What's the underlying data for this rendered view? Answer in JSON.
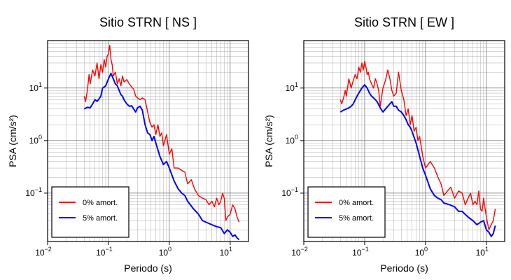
{
  "chart_data": [
    {
      "type": "line",
      "title": "Sitio STRN [ NS ]",
      "xlabel": "Periodo (s)",
      "ylabel": "PSA (cm/s²)",
      "xscale": "log",
      "yscale": "log",
      "xlim": [
        0.01,
        20
      ],
      "ylim": [
        0.012,
        80
      ],
      "grid": true,
      "legend_position": "bottom-left",
      "xticks": [
        {
          "value": 0.01,
          "base": "10",
          "exp": "−2"
        },
        {
          "value": 0.1,
          "base": "10",
          "exp": "−1"
        },
        {
          "value": 1,
          "base": "10",
          "exp": "0"
        },
        {
          "value": 10,
          "base": "10",
          "exp": "1"
        }
      ],
      "yticks": [
        {
          "value": 0.1,
          "base": "10",
          "exp": "−1"
        },
        {
          "value": 1,
          "base": "10",
          "exp": "0"
        },
        {
          "value": 10,
          "base": "10",
          "exp": "1"
        }
      ],
      "series": [
        {
          "name": "0% amort.",
          "color": "#ff0000",
          "x": [
            0.04,
            0.042,
            0.045,
            0.048,
            0.05,
            0.055,
            0.06,
            0.065,
            0.07,
            0.075,
            0.08,
            0.085,
            0.09,
            0.095,
            0.1,
            0.105,
            0.11,
            0.115,
            0.12,
            0.13,
            0.14,
            0.15,
            0.16,
            0.17,
            0.18,
            0.2,
            0.22,
            0.24,
            0.26,
            0.28,
            0.3,
            0.33,
            0.36,
            0.4,
            0.44,
            0.48,
            0.52,
            0.56,
            0.6,
            0.65,
            0.7,
            0.75,
            0.8,
            0.9,
            1.0,
            1.1,
            1.2,
            1.4,
            1.6,
            1.8,
            2.0,
            2.3,
            2.6,
            3.0,
            3.5,
            4.0,
            4.5,
            5.0,
            5.5,
            6.0,
            6.5,
            7.0,
            7.5,
            8.0,
            8.5,
            9.0,
            10.0,
            11.0,
            12.0,
            13.0,
            14.0
          ],
          "y": [
            7.0,
            5.5,
            9.0,
            18.0,
            12.0,
            22.0,
            17.0,
            30.0,
            15.0,
            28.0,
            20.0,
            35.0,
            25.0,
            40.0,
            45.0,
            65.0,
            35.0,
            28.0,
            17.0,
            20.0,
            12.0,
            15.0,
            11.0,
            17.0,
            13.0,
            14.5,
            12.0,
            10.5,
            9.5,
            7.0,
            6.5,
            6.0,
            6.5,
            6.0,
            3.5,
            2.2,
            1.8,
            2.0,
            1.3,
            2.0,
            1.2,
            1.4,
            0.8,
            1.3,
            0.55,
            0.7,
            0.3,
            0.3,
            0.27,
            0.25,
            0.15,
            0.18,
            0.12,
            0.09,
            0.08,
            0.075,
            0.06,
            0.07,
            0.055,
            0.08,
            0.06,
            0.07,
            0.1,
            0.08,
            0.03,
            0.035,
            0.04,
            0.06,
            0.05,
            0.035,
            0.028
          ]
        },
        {
          "name": "5% amort.",
          "color": "#0000ff",
          "x": [
            0.04,
            0.045,
            0.05,
            0.055,
            0.06,
            0.065,
            0.07,
            0.075,
            0.08,
            0.09,
            0.1,
            0.11,
            0.12,
            0.13,
            0.14,
            0.15,
            0.16,
            0.17,
            0.18,
            0.2,
            0.22,
            0.24,
            0.26,
            0.28,
            0.3,
            0.33,
            0.36,
            0.4,
            0.44,
            0.48,
            0.52,
            0.56,
            0.6,
            0.7,
            0.8,
            0.9,
            1.0,
            1.2,
            1.4,
            1.6,
            1.8,
            2.0,
            2.5,
            3.0,
            3.5,
            4.0,
            5.0,
            6.0,
            7.0,
            8.0,
            9.0,
            10.0,
            11.0,
            12.0,
            13.0,
            14.0
          ],
          "y": [
            4.0,
            4.3,
            4.2,
            5.0,
            6.0,
            5.6,
            6.2,
            7.0,
            10.0,
            11.0,
            15.0,
            19.0,
            15.0,
            12.0,
            11.0,
            9.0,
            7.5,
            7.0,
            6.0,
            5.0,
            4.5,
            4.6,
            4.0,
            3.5,
            4.2,
            4.5,
            3.8,
            2.0,
            1.4,
            1.3,
            1.0,
            1.2,
            0.9,
            0.5,
            0.35,
            0.4,
            0.3,
            0.17,
            0.12,
            0.1,
            0.09,
            0.07,
            0.05,
            0.04,
            0.03,
            0.028,
            0.025,
            0.023,
            0.022,
            0.017,
            0.02,
            0.018,
            0.015,
            0.016,
            0.014,
            0.013
          ]
        }
      ]
    },
    {
      "type": "line",
      "title": "Sitio STRN [ EW ]",
      "xlabel": "Periodo (s)",
      "ylabel": "PSA (cm/s²)",
      "xscale": "log",
      "yscale": "log",
      "xlim": [
        0.01,
        20
      ],
      "ylim": [
        0.012,
        80
      ],
      "grid": true,
      "legend_position": "bottom-left",
      "xticks": [
        {
          "value": 0.01,
          "base": "10",
          "exp": "−2"
        },
        {
          "value": 0.1,
          "base": "10",
          "exp": "−1"
        },
        {
          "value": 1,
          "base": "10",
          "exp": "0"
        },
        {
          "value": 10,
          "base": "10",
          "exp": "1"
        }
      ],
      "yticks": [
        {
          "value": 0.1,
          "base": "10",
          "exp": "−1"
        },
        {
          "value": 1,
          "base": "10",
          "exp": "0"
        },
        {
          "value": 10,
          "base": "10",
          "exp": "1"
        }
      ],
      "series": [
        {
          "name": "0% amort.",
          "color": "#ff0000",
          "x": [
            0.04,
            0.042,
            0.045,
            0.048,
            0.05,
            0.055,
            0.06,
            0.065,
            0.07,
            0.075,
            0.08,
            0.085,
            0.09,
            0.095,
            0.1,
            0.105,
            0.11,
            0.115,
            0.12,
            0.13,
            0.14,
            0.15,
            0.16,
            0.17,
            0.18,
            0.2,
            0.22,
            0.24,
            0.26,
            0.28,
            0.3,
            0.33,
            0.36,
            0.4,
            0.44,
            0.48,
            0.52,
            0.56,
            0.6,
            0.65,
            0.7,
            0.75,
            0.8,
            0.9,
            1.0,
            1.1,
            1.2,
            1.4,
            1.6,
            1.8,
            2.0,
            2.3,
            2.6,
            3.0,
            3.5,
            4.0,
            4.5,
            5.0,
            5.5,
            6.0,
            6.5,
            7.0,
            7.5,
            8.0,
            8.5,
            9.0,
            10.0,
            11.0,
            12.0,
            13.0,
            14.0
          ],
          "y": [
            6.0,
            5.0,
            6.5,
            9.0,
            7.0,
            15.0,
            10.0,
            14.0,
            18.0,
            15.0,
            25.0,
            20.0,
            30.0,
            22.0,
            32.0,
            25.0,
            18.0,
            20.0,
            15.0,
            12.0,
            10.0,
            15.0,
            12.0,
            9.0,
            4.5,
            10.0,
            14.0,
            22.0,
            15.0,
            9.0,
            7.0,
            8.0,
            20.0,
            9.0,
            6.0,
            3.0,
            4.0,
            2.0,
            3.0,
            1.5,
            1.8,
            1.0,
            1.2,
            0.5,
            0.3,
            0.35,
            0.4,
            0.3,
            0.2,
            0.15,
            0.09,
            0.11,
            0.13,
            0.08,
            0.11,
            0.1,
            0.06,
            0.08,
            0.1,
            0.06,
            0.07,
            0.06,
            0.11,
            0.05,
            0.045,
            0.08,
            0.035,
            0.02,
            0.025,
            0.03,
            0.05
          ]
        },
        {
          "name": "5% amort.",
          "color": "#0000ff",
          "x": [
            0.04,
            0.045,
            0.05,
            0.055,
            0.06,
            0.065,
            0.07,
            0.075,
            0.08,
            0.09,
            0.1,
            0.11,
            0.12,
            0.13,
            0.14,
            0.15,
            0.16,
            0.17,
            0.18,
            0.2,
            0.22,
            0.24,
            0.26,
            0.28,
            0.3,
            0.33,
            0.36,
            0.4,
            0.44,
            0.48,
            0.52,
            0.56,
            0.6,
            0.7,
            0.8,
            0.9,
            1.0,
            1.2,
            1.4,
            1.6,
            1.8,
            2.0,
            2.5,
            3.0,
            3.5,
            4.0,
            5.0,
            6.0,
            7.0,
            8.0,
            9.0,
            10.0,
            11.0,
            12.0,
            13.0,
            14.0
          ],
          "y": [
            3.5,
            3.8,
            4.0,
            4.2,
            4.5,
            5.0,
            6.0,
            7.0,
            8.0,
            10.0,
            11.5,
            10.0,
            8.0,
            7.0,
            6.5,
            6.0,
            5.5,
            4.8,
            4.2,
            3.5,
            4.0,
            4.5,
            5.0,
            5.5,
            4.5,
            4.5,
            3.8,
            3.5,
            3.0,
            2.5,
            2.0,
            1.8,
            1.5,
            0.9,
            0.5,
            0.3,
            0.22,
            0.12,
            0.09,
            0.08,
            0.075,
            0.065,
            0.06,
            0.055,
            0.045,
            0.045,
            0.035,
            0.03,
            0.025,
            0.028,
            0.03,
            0.02,
            0.018,
            0.015,
            0.017,
            0.024
          ]
        }
      ]
    }
  ]
}
